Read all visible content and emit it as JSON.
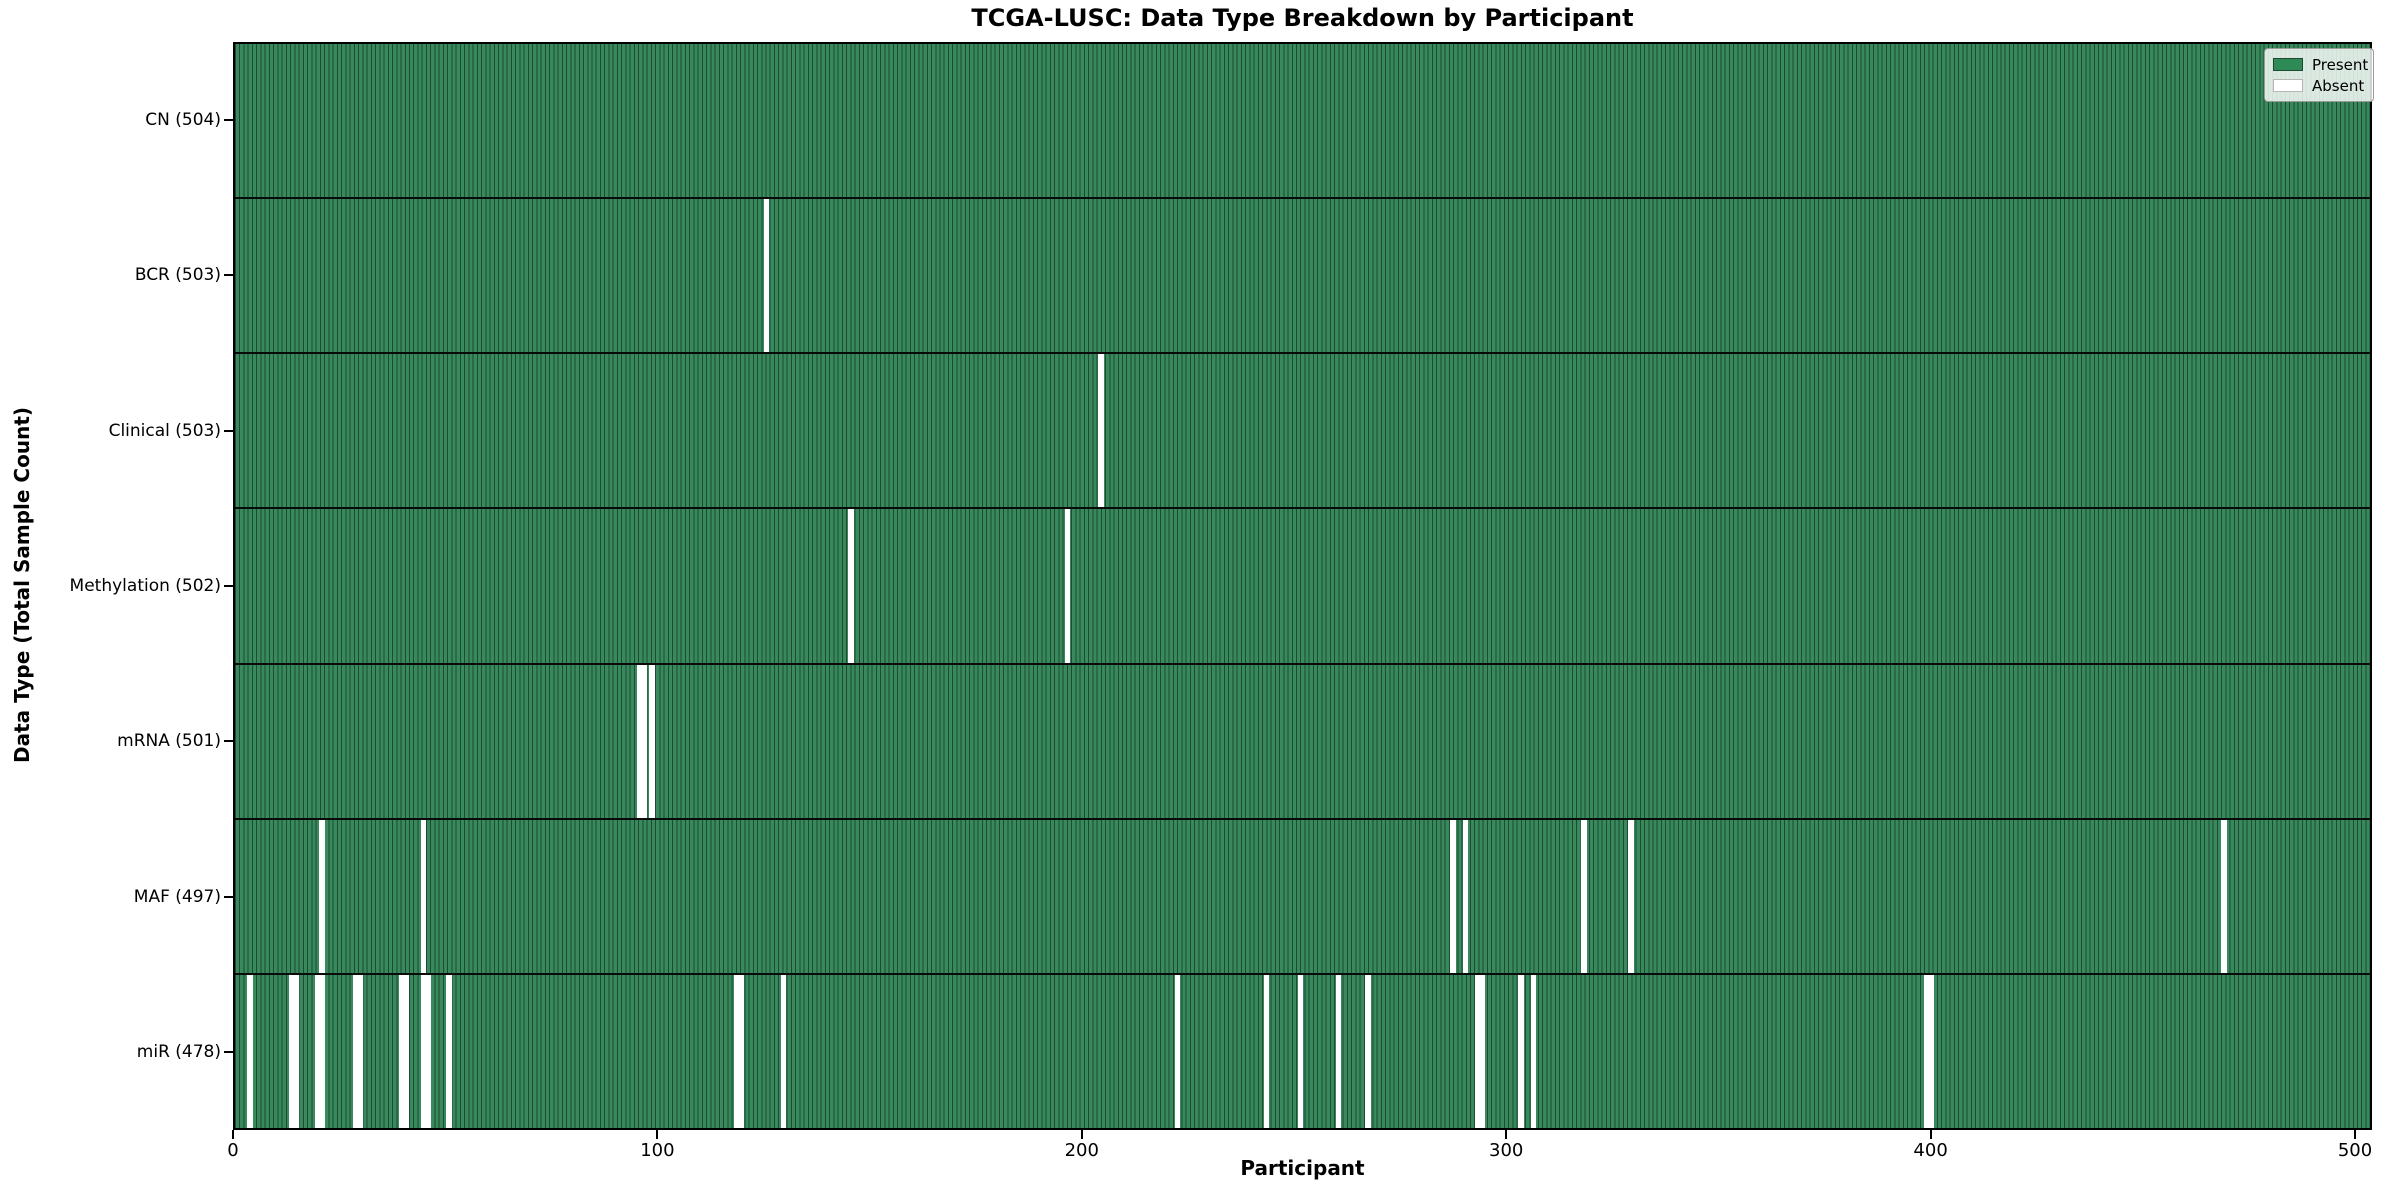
{
  "figure": {
    "title": "TCGA-LUSC: Data Type Breakdown by Participant",
    "xlabel": "Participant",
    "ylabel": "Data Type (Total Sample Count)"
  },
  "legend": {
    "present_label": "Present",
    "absent_label": "Absent"
  },
  "chart_data": {
    "type": "heatmap",
    "title": "TCGA-LUSC: Data Type Breakdown by Participant",
    "xlabel": "Participant",
    "ylabel": "Data Type (Total Sample Count)",
    "x_range": [
      0,
      504
    ],
    "x_ticks": [
      0,
      100,
      200,
      300,
      400,
      500
    ],
    "n_participants": 504,
    "grid": false,
    "legend_entries": [
      "Present",
      "Absent"
    ],
    "legend_position": "upper right",
    "colors": {
      "present": "#2e8b57",
      "absent": "#ffffff"
    },
    "rows": [
      {
        "data_type": "CN",
        "label": "CN (504)",
        "present_count": 504,
        "absent_count": 0,
        "absent_participants": []
      },
      {
        "data_type": "BCR",
        "label": "BCR (503)",
        "present_count": 503,
        "absent_count": 1,
        "absent_participants": [
          125
        ]
      },
      {
        "data_type": "Clinical",
        "label": "Clinical (503)",
        "present_count": 503,
        "absent_count": 1,
        "absent_participants": [
          204
        ]
      },
      {
        "data_type": "Methylation",
        "label": "Methylation (502)",
        "present_count": 502,
        "absent_count": 2,
        "absent_participants": [
          145,
          196
        ]
      },
      {
        "data_type": "mRNA",
        "label": "mRNA (501)",
        "present_count": 501,
        "absent_count": 3,
        "absent_participants": [
          95,
          96,
          98
        ]
      },
      {
        "data_type": "MAF",
        "label": "MAF (497)",
        "present_count": 497,
        "absent_count": 7,
        "absent_participants": [
          20,
          44,
          287,
          290,
          318,
          329,
          469
        ]
      },
      {
        "data_type": "miR",
        "label": "miR (478)",
        "present_count": 478,
        "absent_count": 26,
        "absent_participants": [
          3,
          13,
          14,
          19,
          20,
          28,
          29,
          39,
          40,
          44,
          45,
          50,
          118,
          119,
          129,
          222,
          243,
          251,
          260,
          267,
          293,
          294,
          303,
          306,
          399,
          400
        ]
      }
    ]
  }
}
